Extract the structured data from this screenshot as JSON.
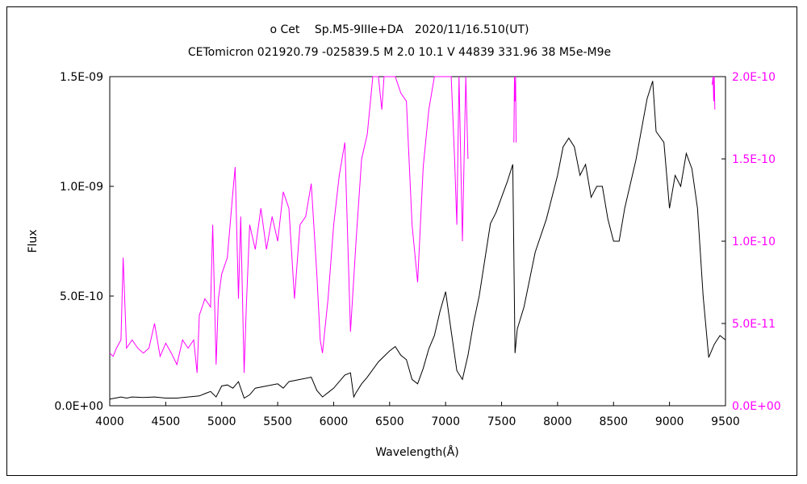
{
  "chart_data": {
    "type": "line",
    "title": "ο Cet　 Sp.M5-9IIIe+DA　2020/11/16.510(UT)",
    "subtitle": "CETomicron 021920.79 -025839.5 M 2.0 10.1 V 44839 331.96 38 M5e-M9e",
    "xlabel": "Wavelength(Å)",
    "ylabel": "Flux",
    "xlim": [
      4000,
      9500
    ],
    "ylim_left": [
      0,
      1.5e-09
    ],
    "ylim_right": [
      0,
      2e-10
    ],
    "x_ticks": [
      "4000",
      "4500",
      "5000",
      "5500",
      "6000",
      "6500",
      "7000",
      "7500",
      "8000",
      "8500",
      "9000",
      "9500"
    ],
    "y_ticks_left": [
      "0.0E+00",
      "5.0E-10",
      "1.0E-09",
      "1.5E-09"
    ],
    "y_ticks_right": [
      "0.0E+00",
      "5.0E-11",
      "1.0E-10",
      "1.5E-10",
      "2.0E-10"
    ],
    "grid": false,
    "colors": {
      "black_series": "#000000",
      "magenta_series": "#ff00ff",
      "right_axis": "#ff00ff"
    },
    "series": [
      {
        "axis": "left",
        "x": [
          4000,
          4050,
          4100,
          4150,
          4200,
          4300,
          4400,
          4500,
          4600,
          4700,
          4800,
          4850,
          4900,
          4950,
          5000,
          5050,
          5100,
          5150,
          5200,
          5250,
          5300,
          5400,
          5500,
          5550,
          5600,
          5700,
          5800,
          5850,
          5900,
          5950,
          6000,
          6050,
          6100,
          6150,
          6180,
          6200,
          6250,
          6300,
          6400,
          6500,
          6550,
          6600,
          6650,
          6700,
          6750,
          6800,
          6850,
          6900,
          6950,
          7000,
          7050,
          7100,
          7150,
          7200,
          7250,
          7300,
          7400,
          7450,
          7500,
          7550,
          7600,
          7620,
          7640,
          7700,
          7800,
          7900,
          8000,
          8050,
          8100,
          8150,
          8200,
          8250,
          8300,
          8350,
          8400,
          8450,
          8500,
          8550,
          8600,
          8700,
          8800,
          8850,
          8880,
          8950,
          9000,
          9050,
          9100,
          9150,
          9200,
          9250,
          9300,
          9350,
          9400,
          9450,
          9500
        ],
        "y": [
          3e-11,
          3.5e-11,
          4e-11,
          3.5e-11,
          4e-11,
          3.8e-11,
          4e-11,
          3.5e-11,
          3.5e-11,
          4e-11,
          4.5e-11,
          5.5e-11,
          6.5e-11,
          4e-11,
          9e-11,
          9.5e-11,
          8e-11,
          1.1e-10,
          3.5e-11,
          5e-11,
          8e-11,
          9e-11,
          1e-10,
          8e-11,
          1.1e-10,
          1.2e-10,
          1.3e-10,
          7e-11,
          4e-11,
          6e-11,
          8e-11,
          1.1e-10,
          1.4e-10,
          1.5e-10,
          4e-11,
          6e-11,
          1e-10,
          1.3e-10,
          2e-10,
          2.5e-10,
          2.7e-10,
          2.3e-10,
          2.1e-10,
          1.2e-10,
          1e-10,
          1.7e-10,
          2.6e-10,
          3.2e-10,
          4.3e-10,
          5.2e-10,
          3.4e-10,
          1.6e-10,
          1.2e-10,
          2.3e-10,
          3.8e-10,
          5e-10,
          8.3e-10,
          8.8e-10,
          9.5e-10,
          1.02e-09,
          1.1e-09,
          2.4e-10,
          3.5e-10,
          4.5e-10,
          7e-10,
          8.5e-10,
          1.05e-09,
          1.18e-09,
          1.22e-09,
          1.18e-09,
          1.05e-09,
          1.1e-09,
          9.5e-10,
          1e-09,
          1e-09,
          8.5e-10,
          7.5e-10,
          7.5e-10,
          9e-10,
          1.12e-09,
          1.4e-09,
          1.48e-09,
          1.25e-09,
          1.2e-09,
          9e-10,
          1.05e-09,
          1e-09,
          1.15e-09,
          1.08e-09,
          9e-10,
          5e-10,
          2.2e-10,
          2.8e-10,
          3.2e-10,
          3e-10
        ]
      },
      {
        "axis": "right",
        "x": [
          4000,
          4030,
          4060,
          4100,
          4120,
          4150,
          4200,
          4250,
          4300,
          4350,
          4400,
          4450,
          4500,
          4550,
          4600,
          4650,
          4700,
          4750,
          4780,
          4800,
          4850,
          4900,
          4920,
          4950,
          4970,
          5000,
          5050,
          5100,
          5120,
          5150,
          5170,
          5200,
          5220,
          5250,
          5300,
          5350,
          5400,
          5450,
          5500,
          5550,
          5600,
          5650,
          5700,
          5750,
          5800,
          5850,
          5880,
          5900,
          5950,
          6000,
          6050,
          6100,
          6150,
          6200,
          6250,
          6300,
          6350,
          6400,
          6430,
          6450,
          6480,
          6500,
          6550,
          6600,
          6650,
          6700,
          6750,
          6800,
          6850,
          6900,
          6950,
          7000,
          7050,
          7080,
          7100,
          7120,
          7150,
          7180,
          7200
        ],
        "y": [
          3.2e-11,
          3e-11,
          3.5e-11,
          4e-11,
          9e-11,
          3.5e-11,
          4e-11,
          3.5e-11,
          3.2e-11,
          3.5e-11,
          5e-11,
          3e-11,
          3.8e-11,
          3.2e-11,
          2.5e-11,
          4e-11,
          3.5e-11,
          4e-11,
          2e-11,
          5.5e-11,
          6.5e-11,
          6e-11,
          1.1e-10,
          2.5e-11,
          6.5e-11,
          8e-11,
          9e-11,
          1.3e-10,
          1.45e-10,
          6.5e-11,
          1.15e-10,
          2e-11,
          6e-11,
          1.1e-10,
          9.5e-11,
          1.2e-10,
          9.5e-11,
          1.15e-10,
          1e-10,
          1.3e-10,
          1.2e-10,
          6.5e-11,
          1.1e-10,
          1.15e-10,
          1.35e-10,
          8e-11,
          4e-11,
          3.2e-11,
          6.5e-11,
          1.1e-10,
          1.4e-10,
          1.6e-10,
          4.5e-11,
          1e-10,
          1.5e-10,
          1.65e-10,
          2e-10,
          2e-10,
          1.8e-10,
          2e-10,
          2e-10,
          2e-10,
          2e-10,
          1.9e-10,
          1.85e-10,
          1.1e-10,
          7.5e-11,
          1.45e-10,
          1.8e-10,
          2e-10,
          2e-10,
          2e-10,
          2e-10,
          1.5e-10,
          1.1e-10,
          2e-10,
          1e-10,
          2e-10,
          1.5e-10
        ]
      },
      {
        "axis": "right",
        "x": [
          7610,
          7615,
          7620,
          7625,
          7630
        ],
        "y": [
          1.6e-10,
          2e-10,
          1.85e-10,
          2e-10,
          1.6e-10
        ]
      },
      {
        "axis": "right",
        "x": [
          9380,
          9390,
          9395,
          9400,
          9405
        ],
        "y": [
          1.95e-10,
          2e-10,
          1.85e-10,
          2e-10,
          1.8e-10
        ]
      }
    ]
  }
}
